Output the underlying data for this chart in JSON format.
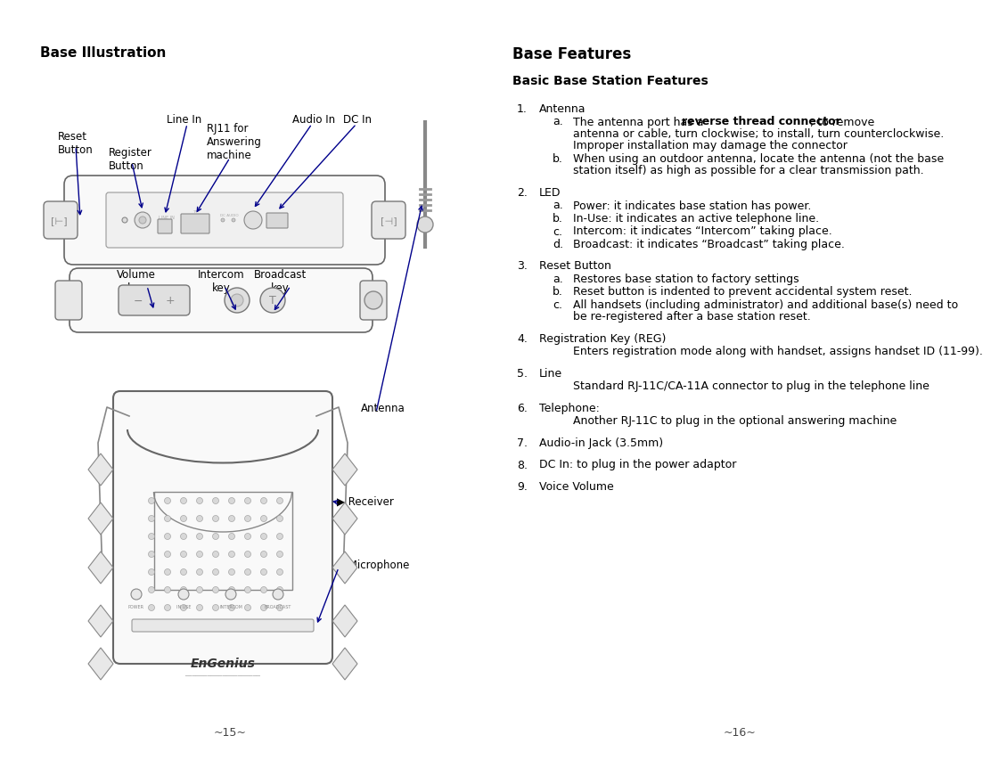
{
  "bg_color": "#ffffff",
  "left_title": "Base Illustration",
  "right_title": "Base Features",
  "right_subtitle": "Basic Base Station Features",
  "page_left": "~15~",
  "page_right": "~16~",
  "arrow_color": "#00008B",
  "label_color": "#000000",
  "features": [
    {
      "num": "1.",
      "title": "Antenna",
      "bold_title": false,
      "subs": [
        {
          "letter": "a.",
          "bold_prefix": "reverse thread connector",
          "text_before": "The antenna port has a ",
          "text_after": "; to remove\nantenna or cable, turn clockwise; to install, turn counterclockwise.\nImproper installation may damage the connector",
          "plain": false
        },
        {
          "letter": "b.",
          "bold_prefix": "",
          "text_before": "When using an outdoor antenna, locate the antenna (not the base\nstation itself) as high as possible for a clear transmission path.",
          "text_after": "",
          "plain": true
        }
      ]
    },
    {
      "num": "2.",
      "title": "LED",
      "bold_title": false,
      "subs": [
        {
          "letter": "a.",
          "plain": true,
          "text_before": "Power: it indicates base station has power.",
          "bold_prefix": "",
          "text_after": ""
        },
        {
          "letter": "b.",
          "plain": true,
          "text_before": "In-Use: it indicates an active telephone line.",
          "bold_prefix": "",
          "text_after": ""
        },
        {
          "letter": "c.",
          "plain": true,
          "text_before": "Intercom: it indicates “Intercom” taking place.",
          "bold_prefix": "",
          "text_after": ""
        },
        {
          "letter": "d.",
          "plain": true,
          "text_before": "Broadcast: it indicates “Broadcast” taking place.",
          "bold_prefix": "",
          "text_after": ""
        }
      ]
    },
    {
      "num": "3.",
      "title": "Reset Button",
      "bold_title": false,
      "subs": [
        {
          "letter": "a.",
          "plain": true,
          "text_before": "Restores base station to factory settings",
          "bold_prefix": "",
          "text_after": ""
        },
        {
          "letter": "b.",
          "plain": true,
          "text_before": "Reset button is indented to prevent accidental system reset.",
          "bold_prefix": "",
          "text_after": ""
        },
        {
          "letter": "c.",
          "plain": true,
          "text_before": "All handsets (including administrator) and additional base(s) need to\nbe re-registered after a base station reset.",
          "bold_prefix": "",
          "text_after": ""
        }
      ]
    },
    {
      "num": "4.",
      "title": "Registration Key (REG)",
      "bold_title": false,
      "subs": [
        {
          "letter": "",
          "plain": true,
          "text_before": "Enters registration mode along with handset, assigns handset ID (11-99).",
          "bold_prefix": "",
          "text_after": ""
        }
      ]
    },
    {
      "num": "5.",
      "title": "Line",
      "bold_title": false,
      "subs": [
        {
          "letter": "",
          "plain": true,
          "text_before": "Standard RJ-11C/CA-11A connector to plug in the telephone line",
          "bold_prefix": "",
          "text_after": ""
        }
      ]
    },
    {
      "num": "6.",
      "title": "Telephone:",
      "bold_title": false,
      "subs": [
        {
          "letter": "",
          "plain": true,
          "text_before": "Another RJ-11C to plug in the optional answering machine",
          "bold_prefix": "",
          "text_after": ""
        }
      ]
    },
    {
      "num": "7.",
      "title": "Audio-in Jack (3.5mm)",
      "bold_title": false,
      "subs": []
    },
    {
      "num": "8.",
      "title": "DC In: to plug in the power adaptor",
      "bold_title": false,
      "subs": []
    },
    {
      "num": "9.",
      "title": "Voice Volume",
      "bold_title": false,
      "subs": []
    }
  ]
}
